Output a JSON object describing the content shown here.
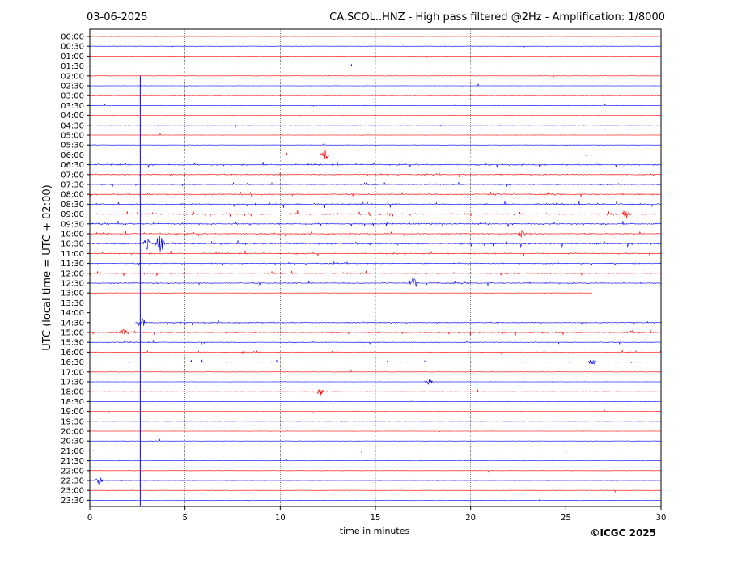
{
  "header": {
    "date": "03-06-2025",
    "title": "CA.SCOL..HNZ - High pass filtered @2Hz - Amplification: 1/8000"
  },
  "footer": {
    "copyright": "©ICGC 2025"
  },
  "colors": {
    "red_trace": "#ff0000",
    "blue_trace": "#0000ff",
    "grid": "#000000",
    "frame": "#000000"
  },
  "chart_data": {
    "type": "line",
    "title": "CA.SCOL..HNZ - High pass filtered @2Hz - Amplification: 1/8000",
    "xlabel": "time in minutes",
    "ylabel": "UTC (local time = UTC + 02:00)",
    "xlim": [
      0,
      30
    ],
    "xticks": [
      0,
      5,
      10,
      15,
      20,
      25,
      30
    ],
    "vertical_grid": true,
    "row_colors_alternate": [
      "red",
      "blue"
    ],
    "rows": [
      {
        "label": "00:00",
        "color": "red",
        "activity": 0.05
      },
      {
        "label": "00:30",
        "color": "blue",
        "activity": 0.05
      },
      {
        "label": "01:00",
        "color": "red",
        "activity": 0.05
      },
      {
        "label": "01:30",
        "color": "blue",
        "activity": 0.05
      },
      {
        "label": "02:00",
        "color": "red",
        "activity": 0.05
      },
      {
        "label": "02:30",
        "color": "blue",
        "activity": 0.06
      },
      {
        "label": "03:00",
        "color": "red",
        "activity": 0.06
      },
      {
        "label": "03:30",
        "color": "blue",
        "activity": 0.08
      },
      {
        "label": "04:00",
        "color": "red",
        "activity": 0.06
      },
      {
        "label": "04:30",
        "color": "blue",
        "activity": 0.06
      },
      {
        "label": "05:00",
        "color": "red",
        "activity": 0.07
      },
      {
        "label": "05:30",
        "color": "blue",
        "activity": 0.08
      },
      {
        "label": "06:00",
        "color": "red",
        "activity": 0.1,
        "events": [
          {
            "t": 12.35,
            "amp": 8
          }
        ]
      },
      {
        "label": "06:30",
        "color": "blue",
        "activity": 0.6
      },
      {
        "label": "07:00",
        "color": "red",
        "activity": 0.55
      },
      {
        "label": "07:30",
        "color": "blue",
        "activity": 0.3
      },
      {
        "label": "08:00",
        "color": "red",
        "activity": 0.6
      },
      {
        "label": "08:30",
        "color": "blue",
        "activity": 0.75
      },
      {
        "label": "09:00",
        "color": "red",
        "activity": 0.7,
        "events": [
          {
            "t": 28.2,
            "amp": 6
          }
        ]
      },
      {
        "label": "09:30",
        "color": "blue",
        "activity": 0.65
      },
      {
        "label": "10:00",
        "color": "red",
        "activity": 0.55,
        "events": [
          {
            "t": 22.7,
            "amp": 5
          }
        ]
      },
      {
        "label": "10:30",
        "color": "blue",
        "activity": 0.75,
        "events": [
          {
            "t": 3.0,
            "amp": 7
          },
          {
            "t": 3.7,
            "amp": 10
          }
        ]
      },
      {
        "label": "11:00",
        "color": "red",
        "activity": 0.55
      },
      {
        "label": "11:30",
        "color": "blue",
        "activity": 0.5
      },
      {
        "label": "12:00",
        "color": "red",
        "activity": 0.45
      },
      {
        "label": "12:30",
        "color": "blue",
        "activity": 0.55,
        "events": [
          {
            "t": 17.0,
            "amp": 8
          }
        ]
      },
      {
        "label": "13:00",
        "color": "red",
        "activity": 0.05,
        "end": 26.4
      },
      {
        "label": "13:30",
        "color": "blue",
        "activity": 0,
        "empty": true
      },
      {
        "label": "14:00",
        "color": "red",
        "activity": 0,
        "empty": true
      },
      {
        "label": "14:30",
        "color": "blue",
        "activity": 0.5,
        "start": 2.4,
        "end": 30,
        "events": [
          {
            "t": 2.7,
            "amp": 8
          }
        ]
      },
      {
        "label": "15:00",
        "color": "red",
        "activity": 0.55,
        "events": [
          {
            "t": 1.8,
            "amp": 4
          }
        ]
      },
      {
        "label": "15:30",
        "color": "blue",
        "activity": 0.3
      },
      {
        "label": "16:00",
        "color": "red",
        "activity": 0.3
      },
      {
        "label": "16:30",
        "color": "blue",
        "activity": 0.15,
        "events": [
          {
            "t": 26.4,
            "amp": 4
          }
        ]
      },
      {
        "label": "17:00",
        "color": "red",
        "activity": 0.05
      },
      {
        "label": "17:30",
        "color": "blue",
        "activity": 0.05,
        "events": [
          {
            "t": 17.8,
            "amp": 5
          }
        ]
      },
      {
        "label": "18:00",
        "color": "red",
        "activity": 0.08,
        "events": [
          {
            "t": 12.1,
            "amp": 5
          }
        ]
      },
      {
        "label": "18:30",
        "color": "blue",
        "activity": 0.05
      },
      {
        "label": "19:00",
        "color": "red",
        "activity": 0.05
      },
      {
        "label": "19:30",
        "color": "blue",
        "activity": 0.05
      },
      {
        "label": "20:00",
        "color": "red",
        "activity": 0.05
      },
      {
        "label": "20:30",
        "color": "blue",
        "activity": 0.05
      },
      {
        "label": "21:00",
        "color": "red",
        "activity": 0.05
      },
      {
        "label": "21:30",
        "color": "blue",
        "activity": 0.05
      },
      {
        "label": "22:00",
        "color": "red",
        "activity": 0.05
      },
      {
        "label": "22:30",
        "color": "blue",
        "activity": 0.05,
        "events": [
          {
            "t": 0.5,
            "amp": 5
          }
        ]
      },
      {
        "label": "23:00",
        "color": "red",
        "activity": 0.05
      },
      {
        "label": "23:30",
        "color": "blue",
        "activity": 0.05
      }
    ],
    "spike": {
      "t": 2.65,
      "from_row": "02:00",
      "to_row": "23:30"
    }
  }
}
